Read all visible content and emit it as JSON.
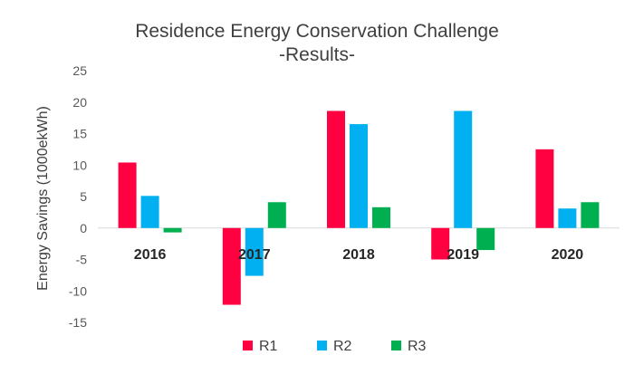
{
  "chart_data": {
    "type": "bar",
    "title": "Residence Energy Conservation Challenge",
    "subtitle": "-Results-",
    "ylabel": "Energy Savings (1000ekWh)",
    "xlabel": "",
    "ylim": [
      -15,
      25
    ],
    "yticks": [
      25,
      20,
      15,
      10,
      5,
      0,
      -5,
      -10,
      -15
    ],
    "categories": [
      "2016",
      "2017",
      "2018",
      "2019",
      "2020"
    ],
    "series": [
      {
        "name": "R1",
        "color": "#ff0040",
        "values": [
          10.4,
          -12.2,
          18.6,
          -5.0,
          12.5
        ]
      },
      {
        "name": "R2",
        "color": "#00b0f0",
        "values": [
          5.1,
          -7.6,
          16.5,
          18.6,
          3.1
        ]
      },
      {
        "name": "R3",
        "color": "#00b050",
        "values": [
          -0.7,
          4.1,
          3.3,
          -3.5,
          4.1
        ]
      }
    ],
    "grid": false,
    "legend_position": "bottom"
  }
}
